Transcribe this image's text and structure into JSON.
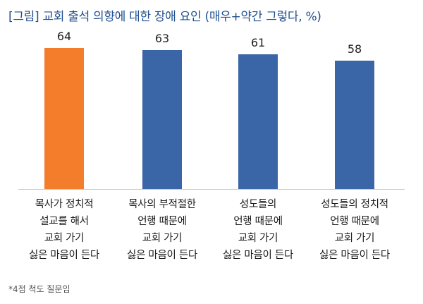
{
  "title": "[그림] 교회 출석 의향에 대한 장애 요인 (매우+약간 그렇다, %)",
  "footnote": "*4점 척도 질문임",
  "chart_data": {
    "type": "bar",
    "title": "[그림] 교회 출석 의향에 대한 장애 요인 (매우+약간 그렇다, %)",
    "xlabel": "",
    "ylabel": "",
    "ylim": [
      0,
      70
    ],
    "grid": false,
    "categories": [
      [
        "목사가 정치적",
        "설교를 해서",
        "교회 가기",
        "싫은 마음이 든다"
      ],
      [
        "목사의 부적절한",
        "언행 때문에",
        "교회 가기",
        "싫은 마음이 든다"
      ],
      [
        "성도들의",
        "언행 때문에",
        "교회 가기",
        "싫은 마음이 든다"
      ],
      [
        "성도들의 정치적",
        "언행 때문에",
        "교회 가기",
        "싫은 마음이 든다"
      ]
    ],
    "values": [
      64,
      63,
      61,
      58
    ],
    "colors": [
      "#f47d2c",
      "#3a66a8",
      "#3a66a8",
      "#3a66a8"
    ]
  }
}
